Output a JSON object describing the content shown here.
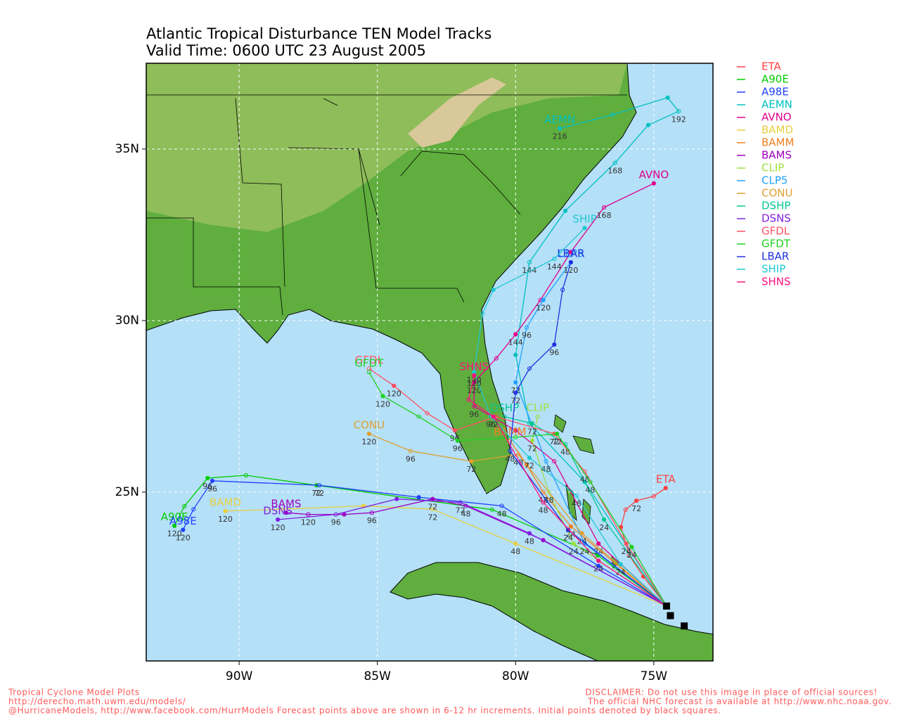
{
  "chart_data": {
    "type": "track",
    "title": "Atlantic Tropical Disturbance TEN Model Tracks",
    "subtitle": "Valid Time: 0600 UTC 23 August 2005",
    "xlim": [
      -93.36,
      -72.86
    ],
    "ylim": [
      20.08,
      37.5
    ],
    "xticks": [
      {
        "value": -90,
        "label": "90W"
      },
      {
        "value": -85,
        "label": "85W"
      },
      {
        "value": -80,
        "label": "80W"
      },
      {
        "value": -75,
        "label": "75W"
      }
    ],
    "yticks": [
      {
        "value": 25,
        "label": "25N"
      },
      {
        "value": 30,
        "label": "30N"
      },
      {
        "value": 35,
        "label": "35N"
      }
    ],
    "grid": true,
    "initial_points": {
      "x": [
        -74.54,
        -74.4,
        -73.9
      ],
      "values": [
        21.68,
        21.4,
        21.1
      ]
    },
    "series": [
      {
        "name": "ETA",
        "color": "#ff4040",
        "x": [
          -74.54,
          -75.38,
          -75.89,
          -76.19,
          -76.02,
          -75.63,
          -75.0,
          -74.57
        ],
        "values": [
          21.68,
          22.54,
          23.16,
          23.98,
          24.49,
          24.75,
          24.88,
          25.12
        ],
        "hour_labels": [
          null,
          null,
          null,
          null,
          null,
          "72",
          null,
          null
        ]
      },
      {
        "name": "A90E",
        "color": "#00cc00",
        "x": [
          -74.54,
          -77.03,
          -80.85,
          -87.2,
          -89.75,
          -91.14,
          -91.98,
          -92.34
        ],
        "values": [
          21.68,
          23.16,
          24.49,
          25.2,
          25.49,
          25.41,
          24.59,
          24.02
        ],
        "hour_labels": [
          null,
          null,
          null,
          "72",
          null,
          "96",
          null,
          "120"
        ]
      },
      {
        "name": "A98E",
        "color": "#2040ff",
        "x": [
          -74.54,
          -77.0,
          -80.5,
          -83.5,
          -87.1,
          -90.97,
          -91.65,
          -92.03
        ],
        "values": [
          21.68,
          22.85,
          24.6,
          24.85,
          25.2,
          25.33,
          24.5,
          23.9
        ],
        "hour_labels": [
          null,
          null,
          "48",
          null,
          "72",
          "96",
          null,
          "120"
        ]
      },
      {
        "name": "AEMN",
        "color": "#00c0c0",
        "x": [
          -74.54,
          -77.5,
          -79.5,
          -80.0,
          -79.5,
          -78.2,
          -76.4,
          -75.2,
          -74.1,
          -74.5,
          -76.5,
          -78.4
        ],
        "values": [
          21.68,
          25.3,
          27.0,
          29.0,
          31.7,
          33.2,
          34.6,
          35.7,
          36.1,
          36.5,
          36.0,
          35.6
        ],
        "hour_labels": [
          null,
          null,
          null,
          null,
          "144",
          null,
          "168",
          null,
          "192",
          null,
          null,
          "216"
        ]
      },
      {
        "name": "AVNO",
        "color": "#e0008c",
        "x": [
          -74.54,
          -77.0,
          -78.6,
          -80.0,
          -81.5,
          -81.5,
          -80.7,
          -80.0,
          -79.1,
          -78.0,
          -76.8,
          -75.0
        ],
        "values": [
          21.68,
          23.5,
          25.9,
          26.8,
          27.5,
          28.2,
          28.9,
          29.6,
          30.6,
          32.0,
          33.3,
          34.0
        ],
        "hour_labels": [
          null,
          "24",
          null,
          null,
          "96",
          "120",
          null,
          "144",
          null,
          null,
          "168",
          null
        ]
      },
      {
        "name": "BAMD",
        "color": "#e8d040",
        "x": [
          -74.54,
          -80.0,
          -83.0,
          -85.5,
          -88.5,
          -90.5
        ],
        "values": [
          21.68,
          23.5,
          24.5,
          24.6,
          24.5,
          24.45
        ],
        "hour_labels": [
          null,
          "48",
          "72",
          null,
          null,
          "120"
        ]
      },
      {
        "name": "BAMM",
        "color": "#f08020",
        "x": [
          -74.54,
          -78.0,
          -79.0,
          -79.6,
          -80.2
        ],
        "values": [
          21.68,
          24.0,
          25.0,
          25.8,
          26.5
        ],
        "hour_labels": [
          null,
          "24",
          "48",
          null,
          null
        ]
      },
      {
        "name": "BAMS",
        "color": "#a000c0",
        "x": [
          -74.54,
          -79.0,
          -81.8,
          -83.0,
          -85.2,
          -86.2,
          -87.5,
          -88.3
        ],
        "values": [
          21.68,
          23.6,
          24.6,
          24.8,
          24.4,
          24.35,
          24.35,
          24.4
        ],
        "hour_labels": [
          null,
          null,
          "48",
          "72",
          "96",
          null,
          "120",
          null
        ]
      },
      {
        "name": "CLIP",
        "color": "#a0e040",
        "x": [
          -74.54,
          -77.9,
          -78.8,
          -79.4,
          -79.2
        ],
        "values": [
          21.68,
          23.5,
          25.0,
          26.5,
          27.2
        ],
        "hour_labels": [
          null,
          "24",
          "48",
          "72",
          null
        ]
      },
      {
        "name": "CLP5",
        "color": "#20a0ff",
        "x": [
          -74.54,
          -77.5,
          -78.9,
          -80.0,
          -79.6,
          -79.0,
          -78.0
        ],
        "values": [
          21.68,
          23.5,
          25.9,
          28.2,
          29.8,
          30.6,
          31.7
        ],
        "hour_labels": [
          null,
          "24",
          "48",
          "72",
          "96",
          "120",
          null
        ]
      },
      {
        "name": "CONU",
        "color": "#e0a030",
        "x": [
          -74.54,
          -77.6,
          -79.9,
          -81.6,
          -83.8,
          -85.3
        ],
        "values": [
          21.68,
          23.8,
          26.1,
          25.9,
          26.2,
          26.7
        ],
        "hour_labels": [
          null,
          "24",
          "48",
          "72",
          "96",
          "120"
        ]
      },
      {
        "name": "DSHP",
        "color": "#00c890",
        "x": [
          -74.54,
          -76.8,
          -78.2,
          -79.4,
          -80.4
        ],
        "values": [
          21.68,
          24.2,
          26.4,
          27.0,
          27.2
        ],
        "hour_labels": [
          null,
          "24",
          "48",
          "72",
          null
        ]
      },
      {
        "name": "DSNS",
        "color": "#8020e0",
        "x": [
          -74.54,
          -79.5,
          -82.0,
          -84.3,
          -86.5,
          -88.6
        ],
        "values": [
          21.68,
          23.8,
          24.7,
          24.8,
          24.35,
          24.2
        ],
        "hour_labels": [
          null,
          "48",
          "72",
          null,
          "96",
          "120"
        ]
      },
      {
        "name": "GFDL",
        "color": "#ff5060",
        "x": [
          -74.54,
          -76.0,
          -77.5,
          -78.6,
          -80.7,
          -82.2,
          -83.2,
          -84.4,
          -85.3
        ],
        "values": [
          21.68,
          23.5,
          25.6,
          26.7,
          27.2,
          26.8,
          27.3,
          28.1,
          28.6
        ],
        "hour_labels": [
          null,
          "24",
          "48",
          "72",
          null,
          "96",
          null,
          "120",
          null
        ]
      },
      {
        "name": "GFDT",
        "color": "#20d020",
        "x": [
          -74.54,
          -75.8,
          -77.3,
          -78.5,
          -80.0,
          -82.1,
          -83.5,
          -84.8,
          -85.3
        ],
        "values": [
          21.68,
          23.4,
          25.3,
          26.7,
          26.6,
          26.5,
          27.2,
          27.8,
          28.5
        ],
        "hour_labels": [
          null,
          "24",
          "48",
          "72",
          null,
          "96",
          null,
          "120",
          null
        ]
      },
      {
        "name": "LBAR",
        "color": "#2030e0",
        "x": [
          -74.54,
          -78.1,
          -80.2,
          -80.0,
          -79.5,
          -78.6,
          -78.3,
          -78.0
        ],
        "values": [
          21.68,
          23.9,
          26.2,
          27.9,
          28.6,
          29.3,
          30.9,
          31.7
        ],
        "hour_labels": [
          null,
          "24",
          "48",
          "72",
          null,
          "96",
          null,
          "120"
        ]
      },
      {
        "name": "SHIP",
        "color": "#20c8d0",
        "x": [
          -74.54,
          -76.2,
          -77.8,
          -79.5,
          -80.9,
          -81.5,
          -81.2,
          -80.8,
          -78.6,
          -77.5
        ],
        "values": [
          21.68,
          22.9,
          24.9,
          26.0,
          27.2,
          28.5,
          30.2,
          30.9,
          31.8,
          32.7
        ],
        "hour_labels": [
          null,
          "24",
          "48",
          "72",
          "96",
          "120",
          null,
          null,
          "144",
          null
        ]
      },
      {
        "name": "SHNS",
        "color": "#ff1080",
        "x": [
          -74.54,
          -77.0,
          -79.0,
          -80.8,
          -81.7,
          -81.5
        ],
        "values": [
          21.68,
          23.0,
          24.7,
          27.2,
          27.7,
          28.4
        ],
        "hour_labels": [
          null,
          "24",
          "48",
          "72",
          null,
          "120"
        ]
      }
    ]
  },
  "footer": {
    "left": [
      "Tropical Cyclone Model Plots",
      "http://derecho.math.uwm.edu/models/"
    ],
    "right": [
      "DISCLAIMER: Do not use this image in place of official sources!",
      "The official NHC forecast is available at http://www.nhc.noaa.gov."
    ],
    "bottom": "@HurricaneModels, http://www.facebook.com/HurrModels  Forecast points above are shown in 6-12 hr increments. Initial points denoted by black squares."
  }
}
